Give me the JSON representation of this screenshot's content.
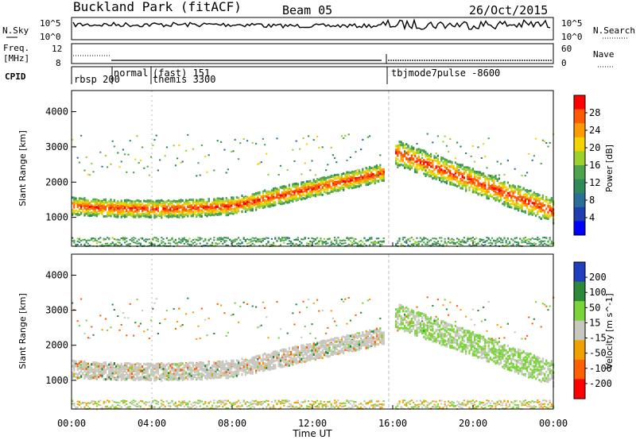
{
  "header": {
    "station": "Buckland Park (fitACF)",
    "beam": "Beam 05",
    "date": "26/Oct/2015"
  },
  "strips": {
    "nsky_label": "N.Sky",
    "nsky_ticks": [
      "10^5",
      "10^0"
    ],
    "nsearch_label": "N.Search",
    "nsearch_ticks": [
      "10^5",
      "10^0"
    ],
    "freq_label_1": "Freq.",
    "freq_label_2": "[MHz]",
    "freq_ticks": [
      "12",
      "8"
    ],
    "nave_label": "Nave",
    "nave_ticks": [
      "60",
      "0"
    ],
    "cpid_label": "CPID",
    "cpid_entries": [
      {
        "text": "rbsp 200",
        "start_h": 0.2
      },
      {
        "text": "normal",
        "start_h": 2.2
      },
      {
        "text": "(fast) 151",
        "start_h": 4.1
      },
      {
        "text": "themis 3300",
        "start_h": 4.1
      },
      {
        "text": "tbjmode7pulse -8600",
        "start_h": 16.1
      }
    ]
  },
  "panels": {
    "ylabel": "Slant Range [km]",
    "xlabel": "Time UT",
    "x_ticks": [
      "00:00",
      "04:00",
      "08:00",
      "12:00",
      "16:00",
      "20:00",
      "00:00"
    ],
    "y_ticks": [
      "1000",
      "2000",
      "3000",
      "4000"
    ]
  },
  "power_scale": {
    "label": "Power [dB]",
    "ticks": [
      "28",
      "24",
      "20",
      "16",
      "12",
      "8",
      "4"
    ],
    "colors": [
      "#ff0000",
      "#ff5a00",
      "#ff9a00",
      "#f2d400",
      "#9bd12a",
      "#4fa34f",
      "#2e8b57",
      "#2a6e9a",
      "#1f3fb0",
      "#0000ff"
    ]
  },
  "velocity_scale": {
    "label": "Velocity [m s^-1]",
    "ticks": [
      "200",
      "100",
      "50",
      "15",
      "-15",
      "-50",
      "-100",
      "-200"
    ],
    "colors": [
      "#1f3fc0",
      "#2a8a3a",
      "#7bd43a",
      "#c8c8c0",
      "#f0a000",
      "#ff6000",
      "#ff0000"
    ]
  },
  "chart_data": [
    {
      "type": "heatmap",
      "title": "",
      "quantity": "Power",
      "units": "dB",
      "xlabel": "Time UT",
      "ylabel": "Slant Range [km]",
      "xlim_hours": [
        0,
        24
      ],
      "ylim_km": [
        180,
        4600
      ],
      "zlim": [
        0,
        30
      ],
      "features": [
        {
          "name": "main band",
          "t_start": 0.0,
          "t_end": 15.5,
          "range_km_start": 1350,
          "range_km_end": 2300,
          "power_db": 26
        },
        {
          "name": "main band",
          "t_start": 16.0,
          "t_end": 24.0,
          "range_km_start": 2900,
          "range_km_end": 1200,
          "power_db": 22
        },
        {
          "name": "ground scatter floor",
          "t_start": 0.0,
          "t_end": 24.0,
          "range_km": 300,
          "power_db": 12
        }
      ]
    },
    {
      "type": "heatmap",
      "title": "",
      "quantity": "Velocity",
      "units": "m s^-1",
      "xlabel": "Time UT",
      "ylabel": "Slant Range [km]",
      "xlim_hours": [
        0,
        24
      ],
      "ylim_km": [
        180,
        4600
      ],
      "zlim": [
        -250,
        250
      ],
      "features": [
        {
          "name": "ground scatter band",
          "t_start": 0.0,
          "t_end": 15.5,
          "range_km_start": 1200,
          "range_km_end": 1800,
          "velocity_ms": 0
        },
        {
          "name": "ionospheric scatter",
          "t_start": 16.0,
          "t_end": 24.0,
          "range_km_start": 2900,
          "range_km_end": 1200,
          "velocity_ms": 40
        }
      ]
    }
  ]
}
